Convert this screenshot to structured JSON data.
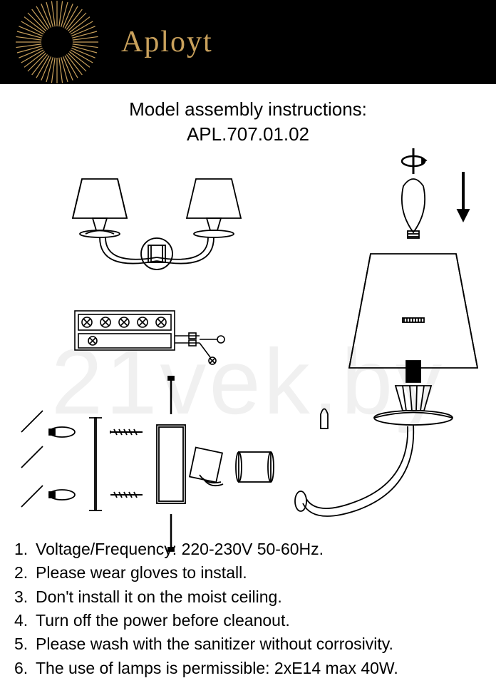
{
  "header": {
    "brand": "Aployt",
    "brand_color": "#c9a15c",
    "bg_color": "#000000",
    "sun_ray_count": 48,
    "sun_radius_outer": 58,
    "sun_radius_inner": 22
  },
  "title": {
    "line1": "Model assembly instructions:",
    "line2": "APL.707.01.02",
    "fontsize": 26,
    "color": "#000000"
  },
  "watermark": {
    "text": "21vek.by",
    "color_alpha": 0.06
  },
  "diagrams": {
    "stroke": "#000000",
    "stroke_width": 1.8,
    "fill": "none",
    "bg": "#ffffff"
  },
  "instructions": {
    "fontsize": 23,
    "items": [
      "Voltage/Frequency: 220-230V 50-60Hz.",
      "Please wear gloves to install.",
      "Don't install it on the moist ceiling.",
      "Turn off the power before cleanout.",
      "Please wash with the sanitizer without corrosivity.",
      "The use of lamps is permissible: 2xE14 max 40W."
    ]
  }
}
